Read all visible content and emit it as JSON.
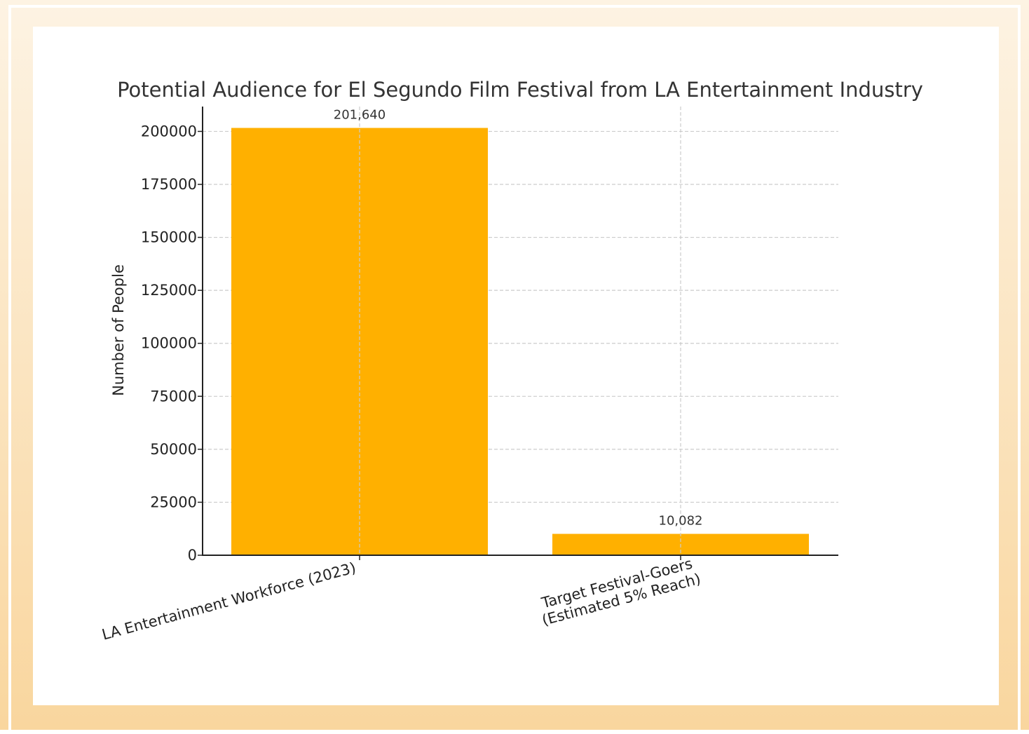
{
  "chart_data": {
    "type": "bar",
    "title": "Potential Audience for El Segundo Film Festival from LA Entertainment Industry",
    "xlabel": "",
    "ylabel": "Number of People",
    "categories": [
      [
        "LA Entertainment Workforce (2023)"
      ],
      [
        "Target Festival-Goers",
        "(Estimated 5% Reach)"
      ]
    ],
    "values": [
      201640,
      10082
    ],
    "value_labels": [
      "201,640",
      "10,082"
    ],
    "ylim": [
      0,
      211722
    ],
    "yticks": [
      0,
      25000,
      50000,
      75000,
      100000,
      125000,
      150000,
      175000,
      200000
    ],
    "grid": true,
    "bar_color": "#ffb000",
    "grid_color": "#cccccc",
    "axis_color": "#222222"
  }
}
